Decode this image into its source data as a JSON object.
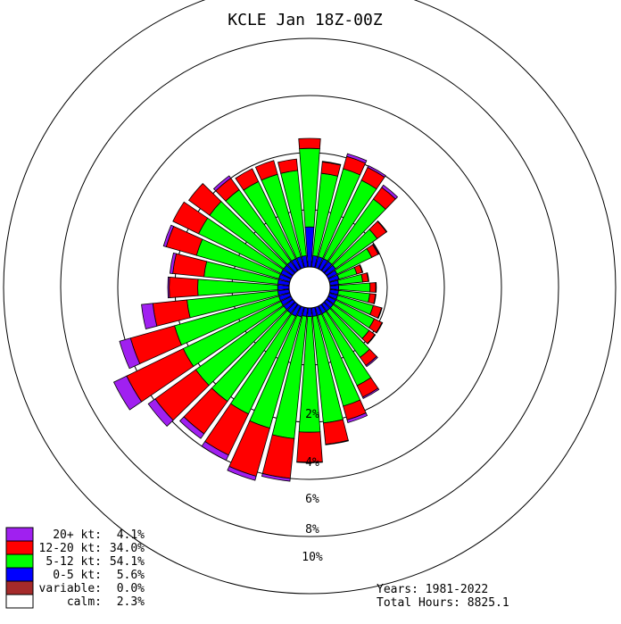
{
  "chart_data": {
    "type": "windrose",
    "title": "KCLE Jan 18Z-00Z",
    "ring_labels": [
      "2%",
      "4%",
      "6%",
      "8%",
      "10%"
    ],
    "ring_values": [
      2,
      4,
      6,
      8,
      10
    ],
    "calm_percent": 2.3,
    "direction_step_deg": 10,
    "speed_bins": [
      {
        "name": "20+ kt",
        "percent_text": "4.1%",
        "color": "#a020f0"
      },
      {
        "name": "12-20 kt",
        "percent_text": "34.0%",
        "color": "#ff0000"
      },
      {
        "name": "5-12 kt",
        "percent_text": "54.1%",
        "color": "#00ff00"
      },
      {
        "name": "0-5 kt",
        "percent_text": "5.6%",
        "color": "#0000ff"
      },
      {
        "name": "variable",
        "percent_text": "0.0%",
        "color": "#a52a2a"
      },
      {
        "name": "calm",
        "percent_text": "2.3%",
        "color": "#ffffff"
      }
    ],
    "petals": [
      {
        "dir": 0,
        "cum": [
          1.4,
          4.15,
          4.5,
          4.5
        ]
      },
      {
        "dir": 10,
        "cum": [
          0.4,
          3.3,
          3.7,
          3.72
        ]
      },
      {
        "dir": 20,
        "cum": [
          0.4,
          3.6,
          4.05,
          4.15
        ]
      },
      {
        "dir": 30,
        "cum": [
          0.4,
          3.45,
          3.95,
          4.02
        ]
      },
      {
        "dir": 40,
        "cum": [
          0.4,
          3.1,
          3.6,
          3.7
        ]
      },
      {
        "dir": 50,
        "cum": [
          0.4,
          2.2,
          2.6,
          2.62
        ]
      },
      {
        "dir": 60,
        "cum": [
          0.35,
          1.7,
          1.95,
          1.98
        ]
      },
      {
        "dir": 70,
        "cum": [
          0.35,
          1.0,
          1.2,
          1.22
        ]
      },
      {
        "dir": 80,
        "cum": [
          0.3,
          1.15,
          1.35,
          1.37
        ]
      },
      {
        "dir": 90,
        "cum": [
          0.3,
          1.4,
          1.6,
          1.62
        ]
      },
      {
        "dir": 100,
        "cum": [
          0.3,
          1.4,
          1.6,
          1.62
        ]
      },
      {
        "dir": 110,
        "cum": [
          0.3,
          1.6,
          1.9,
          1.92
        ]
      },
      {
        "dir": 120,
        "cum": [
          0.3,
          1.8,
          2.1,
          2.12
        ]
      },
      {
        "dir": 130,
        "cum": [
          0.3,
          1.85,
          2.1,
          2.12
        ]
      },
      {
        "dir": 140,
        "cum": [
          0.3,
          2.3,
          2.65,
          2.7
        ]
      },
      {
        "dir": 150,
        "cum": [
          0.3,
          3.1,
          3.55,
          3.6
        ]
      },
      {
        "dir": 160,
        "cum": [
          0.3,
          3.6,
          4.1,
          4.2
        ]
      },
      {
        "dir": 170,
        "cum": [
          0.3,
          4.05,
          4.8,
          4.82
        ]
      },
      {
        "dir": 180,
        "cum": [
          0.3,
          4.35,
          5.4,
          5.42
        ]
      },
      {
        "dir": 190,
        "cum": [
          0.3,
          4.6,
          6.0,
          6.1
        ]
      },
      {
        "dir": 200,
        "cum": [
          0.35,
          4.4,
          6.15,
          6.3
        ]
      },
      {
        "dir": 210,
        "cum": [
          0.4,
          4.2,
          5.8,
          6.0
        ]
      },
      {
        "dir": 220,
        "cum": [
          0.4,
          4.2,
          5.6,
          5.8
        ]
      },
      {
        "dir": 230,
        "cum": [
          0.4,
          4.2,
          5.95,
          6.25
        ]
      },
      {
        "dir": 240,
        "cum": [
          0.4,
          4.2,
          6.4,
          6.9
        ]
      },
      {
        "dir": 250,
        "cum": [
          0.4,
          4.2,
          5.8,
          6.2
        ]
      },
      {
        "dir": 260,
        "cum": [
          0.4,
          3.6,
          4.8,
          5.2
        ]
      },
      {
        "dir": 270,
        "cum": [
          0.4,
          3.2,
          4.2,
          4.25
        ]
      },
      {
        "dir": 280,
        "cum": [
          0.4,
          3.0,
          4.1,
          4.2
        ]
      },
      {
        "dir": 290,
        "cum": [
          0.4,
          3.4,
          4.5,
          4.6
        ]
      },
      {
        "dir": 300,
        "cum": [
          0.4,
          3.6,
          4.6,
          4.6
        ]
      },
      {
        "dir": 310,
        "cum": [
          0.4,
          3.6,
          4.5,
          4.5
        ]
      },
      {
        "dir": 320,
        "cum": [
          0.4,
          3.5,
          4.0,
          4.1
        ]
      },
      {
        "dir": 330,
        "cum": [
          0.4,
          3.4,
          3.9,
          3.9
        ]
      },
      {
        "dir": 340,
        "cum": [
          0.4,
          3.4,
          3.9,
          3.9
        ]
      },
      {
        "dir": 350,
        "cum": [
          0.4,
          3.4,
          3.8,
          3.8
        ]
      }
    ]
  },
  "legend": {
    "rows": [
      {
        "label": "20+ kt:",
        "value": "4.1%",
        "color": "#a020f0"
      },
      {
        "label": "12-20 kt:",
        "value": "34.0%",
        "color": "#ff0000"
      },
      {
        "label": "5-12 kt:",
        "value": "54.1%",
        "color": "#00ff00"
      },
      {
        "label": "0-5 kt:",
        "value": "5.6%",
        "color": "#0000ff"
      },
      {
        "label": "variable:",
        "value": "0.0%",
        "color": "#a52a2a"
      },
      {
        "label": "calm:",
        "value": "2.3%",
        "color": "#ffffff"
      }
    ]
  },
  "stats": {
    "years": "Years: 1981-2022",
    "total_hours": "Total Hours: 8825.1"
  }
}
